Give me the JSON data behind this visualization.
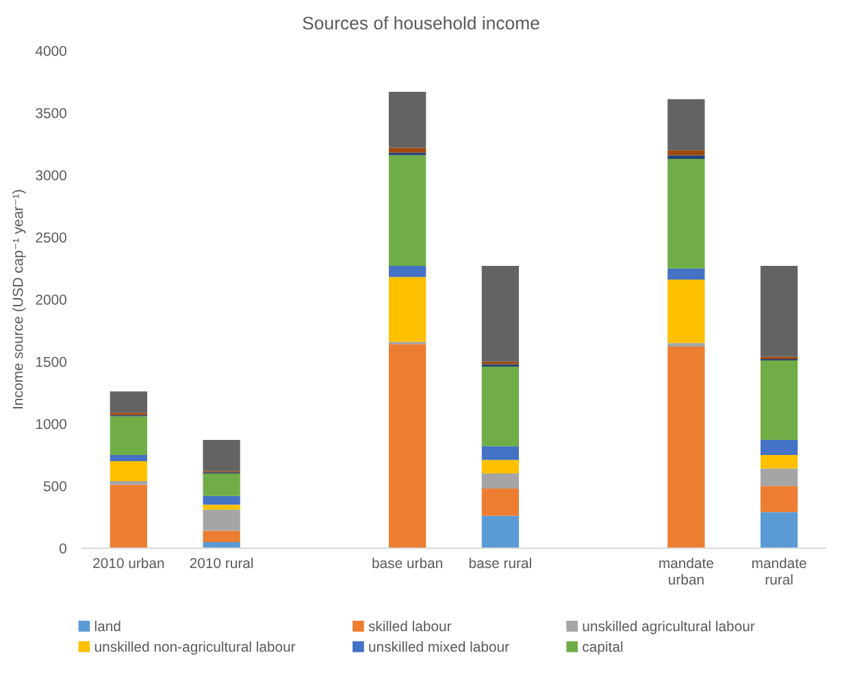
{
  "chart_data": {
    "type": "bar",
    "stacked": true,
    "title": "Sources of household income",
    "ylabel": "Income source (USD cap⁻¹ year⁻¹)",
    "categories": [
      "2010 urban",
      "2010 rural",
      null,
      "base urban",
      "base rural",
      null,
      "mandate urban",
      "mandate rural"
    ],
    "ylim": [
      0,
      4000
    ],
    "yticks": [
      0,
      500,
      1000,
      1500,
      2000,
      2500,
      3000,
      3500,
      4000
    ],
    "grid": false,
    "legend": "bottom",
    "series": [
      {
        "name": "land",
        "color": "#5b9bd5",
        "values": [
          0,
          50,
          null,
          0,
          260,
          null,
          0,
          290
        ]
      },
      {
        "name": "skilled labour",
        "color": "#ed7d31",
        "values": [
          510,
          90,
          null,
          1640,
          220,
          null,
          1620,
          210
        ]
      },
      {
        "name": "unskilled agricultural labour",
        "color": "#a5a5a5",
        "values": [
          30,
          170,
          null,
          20,
          120,
          null,
          30,
          140
        ]
      },
      {
        "name": "unskilled non-agricultural labour",
        "color": "#ffc000",
        "values": [
          160,
          40,
          null,
          520,
          110,
          null,
          510,
          110
        ]
      },
      {
        "name": "unskilled mixed labour",
        "color": "#4472c4",
        "values": [
          50,
          70,
          null,
          90,
          110,
          null,
          90,
          120
        ]
      },
      {
        "name": "capital",
        "color": "#70ad47",
        "values": [
          310,
          180,
          null,
          890,
          640,
          null,
          880,
          640
        ]
      },
      {
        "color": "#264478",
        "values": [
          10,
          10,
          null,
          20,
          20,
          null,
          30,
          10
        ]
      },
      {
        "color": "#9e480e",
        "values": [
          20,
          10,
          null,
          40,
          20,
          null,
          40,
          20
        ]
      },
      {
        "color": "#636363",
        "values": [
          170,
          250,
          null,
          450,
          770,
          null,
          410,
          730
        ]
      }
    ]
  }
}
